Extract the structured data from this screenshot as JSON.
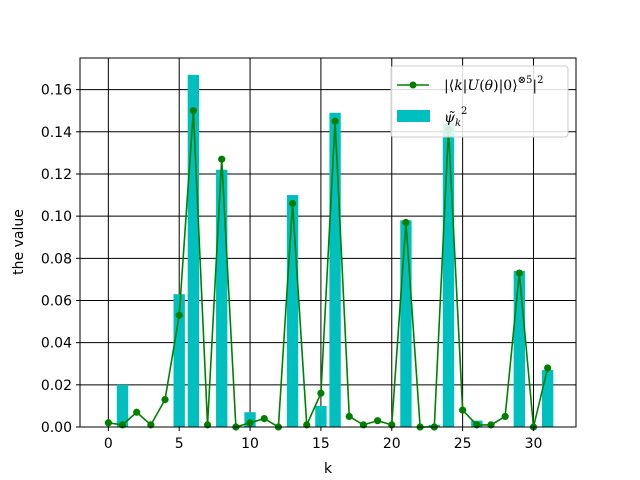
{
  "chart_data": {
    "type": "bar",
    "title": "",
    "xlabel": "k",
    "ylabel": "the value",
    "xlim": [
      -2,
      33
    ],
    "ylim": [
      0,
      0.175
    ],
    "xticks": [
      0,
      5,
      10,
      15,
      20,
      25,
      30
    ],
    "yticks": [
      0.0,
      0.02,
      0.04,
      0.06,
      0.08,
      0.1,
      0.12,
      0.14,
      0.16
    ],
    "ytick_labels": [
      "0.00",
      "0.02",
      "0.04",
      "0.06",
      "0.08",
      "0.10",
      "0.12",
      "0.14",
      "0.16"
    ],
    "grid": true,
    "legend_position": "top-right",
    "colors": {
      "line": "#008000",
      "bar": "#00bfbf"
    },
    "x": [
      0,
      1,
      2,
      3,
      4,
      5,
      6,
      7,
      8,
      9,
      10,
      11,
      12,
      13,
      14,
      15,
      16,
      17,
      18,
      19,
      20,
      21,
      22,
      23,
      24,
      25,
      26,
      27,
      28,
      29,
      30,
      31
    ],
    "series": [
      {
        "name": "|⟨k|U(θ)|0⟩^{⊗5}|^2",
        "kind": "line",
        "values": [
          0.002,
          0.001,
          0.007,
          0.001,
          0.013,
          0.053,
          0.15,
          0.001,
          0.127,
          0.0,
          0.002,
          0.004,
          0.0,
          0.106,
          0.001,
          0.016,
          0.145,
          0.005,
          0.001,
          0.003,
          0.001,
          0.097,
          0.0,
          0.0,
          0.141,
          0.008,
          0.001,
          0.001,
          0.005,
          0.073,
          0.0,
          0.028
        ]
      },
      {
        "name": "ψ̃_k^2",
        "kind": "bar",
        "values": [
          0.0,
          0.02,
          0.0,
          0.0,
          0.0,
          0.063,
          0.167,
          0.0,
          0.122,
          0.0,
          0.007,
          0.0,
          0.0,
          0.11,
          0.0,
          0.01,
          0.149,
          0.0,
          0.0,
          0.0,
          0.0,
          0.098,
          0.0,
          0.001,
          0.144,
          0.0,
          0.003,
          0.0,
          0.0,
          0.074,
          0.0,
          0.027
        ]
      }
    ]
  }
}
